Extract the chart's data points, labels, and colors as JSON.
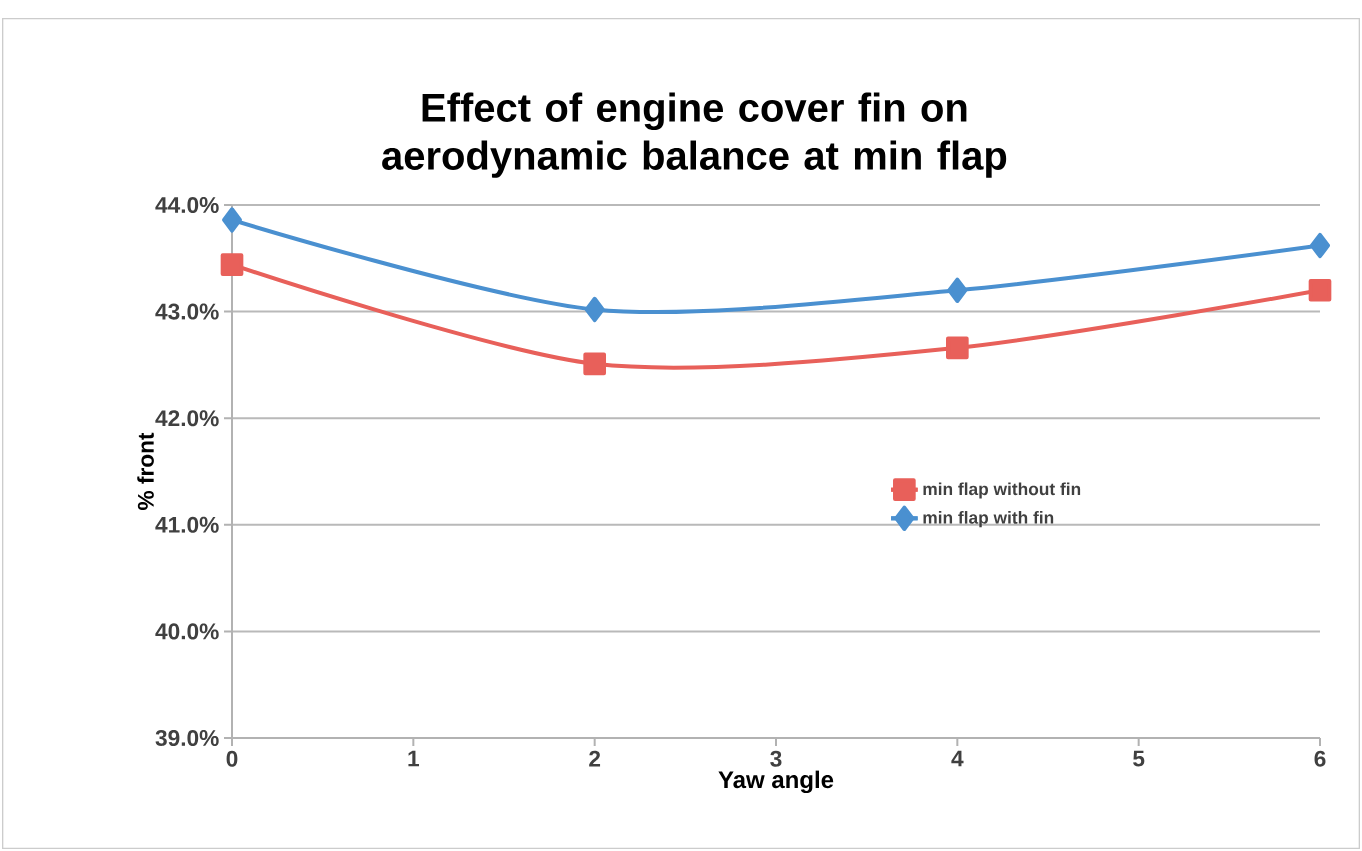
{
  "chart_data": {
    "type": "line",
    "title": "Effect of engine cover fin on aerodynamic balance at min flap",
    "xlabel": "Yaw angle",
    "ylabel": "% front",
    "x": [
      0,
      2,
      4,
      6
    ],
    "series": [
      {
        "name": "min flap without fin",
        "color": "#e8605a",
        "marker": "square",
        "values": [
          43.44,
          42.51,
          42.66,
          43.2
        ]
      },
      {
        "name": "min flap with fin",
        "color": "#4a90d0",
        "marker": "diamond",
        "values": [
          43.86,
          43.02,
          43.2,
          43.62
        ]
      }
    ],
    "xlim": [
      0,
      6
    ],
    "xticks": [
      0,
      1,
      2,
      3,
      4,
      5,
      6
    ],
    "ylim": [
      39,
      44
    ],
    "yticks": [
      {
        "value": 39,
        "label": "39.0%"
      },
      {
        "value": 40,
        "label": "40.0%"
      },
      {
        "value": 41,
        "label": "41.0%"
      },
      {
        "value": 42,
        "label": "42.0%"
      },
      {
        "value": 43,
        "label": "43.0%"
      },
      {
        "value": 44,
        "label": "44.0%"
      }
    ],
    "grid": "y",
    "legend": "right"
  }
}
